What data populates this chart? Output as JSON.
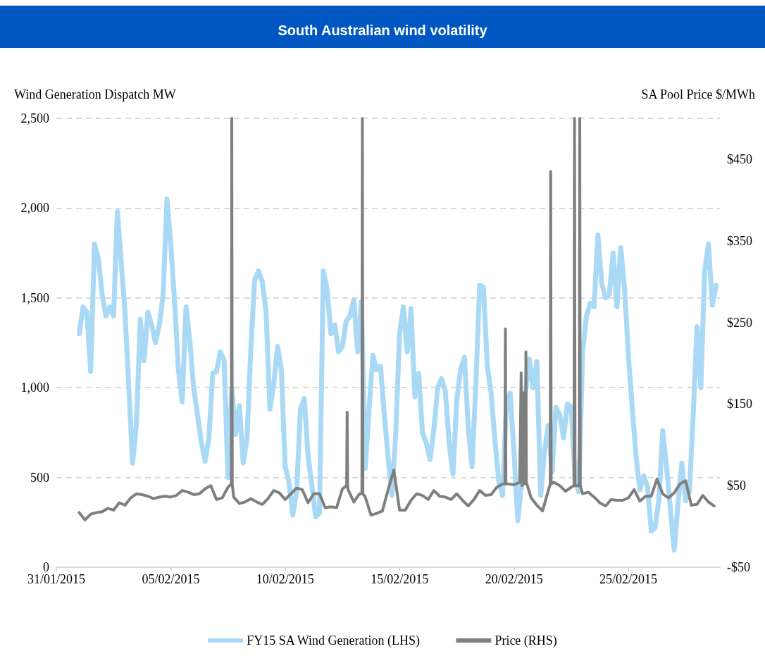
{
  "chart_data": {
    "type": "line",
    "title": "South Australian wind volatility",
    "ylabel": "Wind Generation Dispatch MW",
    "y2label": "SA Pool Price $/MWh",
    "xlim": [
      "2015-01-31",
      "2015-03-01"
    ],
    "xticks": [
      {
        "value": "2015-01-31",
        "label": "31/01/2015"
      },
      {
        "value": "2015-02-05",
        "label": "05/02/2015"
      },
      {
        "value": "2015-02-10",
        "label": "10/02/2015"
      },
      {
        "value": "2015-02-15",
        "label": "15/02/2015"
      },
      {
        "value": "2015-02-20",
        "label": "20/02/2015"
      },
      {
        "value": "2015-02-25",
        "label": "25/02/2015"
      }
    ],
    "ylim": [
      0,
      2500
    ],
    "yticks": [
      0,
      500,
      {
        "value": 1000,
        "label": "1,000"
      },
      {
        "value": 1500,
        "label": "1,500"
      },
      {
        "value": 2000,
        "label": "2,000"
      },
      {
        "value": 2500,
        "label": "2,500"
      }
    ],
    "y2lim": [
      -50,
      500
    ],
    "y2ticks": [
      {
        "value": -50,
        "label": "-$50"
      },
      {
        "value": 50,
        "label": "$50"
      },
      {
        "value": 150,
        "label": "$150"
      },
      {
        "value": 250,
        "label": "$250"
      },
      {
        "value": 350,
        "label": "$350"
      },
      {
        "value": 450,
        "label": "$450"
      }
    ],
    "grid": "y",
    "legend": "bottom",
    "marker": "none",
    "line_style": "solid",
    "series": [
      {
        "name": "FY15 SA Wind Generation (LHS)",
        "color": "#a9d9f5",
        "x": [
          "2015-02-01T00:00",
          "2015-02-01T04:00",
          "2015-02-01T08:00",
          "2015-02-01T12:00",
          "2015-02-01T16:00",
          "2015-02-01T20:00",
          "2015-02-02T00:00",
          "2015-02-02T04:00",
          "2015-02-02T08:00",
          "2015-02-02T12:00",
          "2015-02-02T16:00",
          "2015-02-02T20:00",
          "2015-02-03T00:00",
          "2015-02-03T04:00",
          "2015-02-03T08:00",
          "2015-02-03T12:00",
          "2015-02-03T16:00",
          "2015-02-03T20:00",
          "2015-02-04T00:00",
          "2015-02-04T04:00",
          "2015-02-04T08:00",
          "2015-02-04T12:00",
          "2015-02-04T16:00",
          "2015-02-04T20:00",
          "2015-02-05T00:00",
          "2015-02-05T04:00",
          "2015-02-05T08:00",
          "2015-02-05T12:00",
          "2015-02-05T16:00",
          "2015-02-05T20:00",
          "2015-02-06T00:00",
          "2015-02-06T04:00",
          "2015-02-06T08:00",
          "2015-02-06T12:00",
          "2015-02-06T16:00",
          "2015-02-06T20:00",
          "2015-02-07T00:00",
          "2015-02-07T04:00",
          "2015-02-07T08:00",
          "2015-02-07T12:00",
          "2015-02-07T16:00",
          "2015-02-07T20:00",
          "2015-02-08T00:00",
          "2015-02-08T04:00",
          "2015-02-08T08:00",
          "2015-02-08T12:00",
          "2015-02-08T16:00",
          "2015-02-08T20:00",
          "2015-02-09T00:00",
          "2015-02-09T04:00",
          "2015-02-09T08:00",
          "2015-02-09T12:00",
          "2015-02-09T16:00",
          "2015-02-09T20:00",
          "2015-02-10T00:00",
          "2015-02-10T04:00",
          "2015-02-10T08:00",
          "2015-02-10T12:00",
          "2015-02-10T16:00",
          "2015-02-10T20:00",
          "2015-02-11T00:00",
          "2015-02-11T04:00",
          "2015-02-11T08:00",
          "2015-02-11T12:00",
          "2015-02-11T16:00",
          "2015-02-11T20:00",
          "2015-02-12T00:00",
          "2015-02-12T04:00",
          "2015-02-12T08:00",
          "2015-02-12T12:00",
          "2015-02-12T16:00",
          "2015-02-12T20:00",
          "2015-02-13T00:00",
          "2015-02-13T04:00",
          "2015-02-13T08:00",
          "2015-02-13T12:00",
          "2015-02-13T16:00",
          "2015-02-13T20:00",
          "2015-02-14T00:00",
          "2015-02-14T04:00",
          "2015-02-14T08:00",
          "2015-02-14T12:00",
          "2015-02-14T16:00",
          "2015-02-14T20:00",
          "2015-02-15T00:00",
          "2015-02-15T04:00",
          "2015-02-15T08:00",
          "2015-02-15T12:00",
          "2015-02-15T16:00",
          "2015-02-15T20:00",
          "2015-02-16T00:00",
          "2015-02-16T04:00",
          "2015-02-16T08:00",
          "2015-02-16T12:00",
          "2015-02-16T16:00",
          "2015-02-16T20:00",
          "2015-02-17T00:00",
          "2015-02-17T04:00",
          "2015-02-17T08:00",
          "2015-02-17T12:00",
          "2015-02-17T16:00",
          "2015-02-17T20:00",
          "2015-02-18T00:00",
          "2015-02-18T04:00",
          "2015-02-18T08:00",
          "2015-02-18T12:00",
          "2015-02-18T16:00",
          "2015-02-18T20:00",
          "2015-02-19T00:00",
          "2015-02-19T04:00",
          "2015-02-19T08:00",
          "2015-02-19T12:00",
          "2015-02-19T16:00",
          "2015-02-19T20:00",
          "2015-02-20T00:00",
          "2015-02-20T04:00",
          "2015-02-20T08:00",
          "2015-02-20T12:00",
          "2015-02-20T16:00",
          "2015-02-20T20:00",
          "2015-02-21T00:00",
          "2015-02-21T04:00",
          "2015-02-21T08:00",
          "2015-02-21T12:00",
          "2015-02-21T16:00",
          "2015-02-21T20:00",
          "2015-02-22T00:00",
          "2015-02-22T04:00",
          "2015-02-22T08:00",
          "2015-02-22T12:00",
          "2015-02-22T16:00",
          "2015-02-22T20:00",
          "2015-02-23T00:00",
          "2015-02-23T04:00",
          "2015-02-23T08:00",
          "2015-02-23T12:00",
          "2015-02-23T16:00",
          "2015-02-23T20:00",
          "2015-02-24T00:00",
          "2015-02-24T04:00",
          "2015-02-24T08:00",
          "2015-02-24T12:00",
          "2015-02-24T16:00",
          "2015-02-24T20:00",
          "2015-02-25T00:00",
          "2015-02-25T04:00",
          "2015-02-25T08:00",
          "2015-02-25T12:00",
          "2015-02-25T16:00",
          "2015-02-25T20:00",
          "2015-02-26T00:00",
          "2015-02-26T04:00",
          "2015-02-26T08:00",
          "2015-02-26T12:00",
          "2015-02-26T16:00",
          "2015-02-26T20:00",
          "2015-02-27T00:00",
          "2015-02-27T04:00",
          "2015-02-27T08:00",
          "2015-02-27T12:00",
          "2015-02-27T16:00",
          "2015-02-27T20:00",
          "2015-02-28T00:00",
          "2015-02-28T04:00",
          "2015-02-28T08:00",
          "2015-02-28T12:00",
          "2015-02-28T16:00",
          "2015-02-28T20:00"
        ],
        "values": [
          1300,
          1450,
          1420,
          1090,
          1800,
          1720,
          1520,
          1400,
          1450,
          1400,
          1980,
          1700,
          1420,
          1000,
          580,
          800,
          1380,
          1150,
          1420,
          1350,
          1250,
          1350,
          1520,
          2050,
          1800,
          1480,
          1100,
          920,
          1450,
          1260,
          1000,
          850,
          700,
          590,
          720,
          1080,
          1090,
          1200,
          1150,
          500,
          1000,
          740,
          900,
          580,
          720,
          1220,
          1600,
          1650,
          1590,
          1420,
          880,
          1020,
          1230,
          1100,
          560,
          475,
          290,
          420,
          880,
          940,
          620,
          455,
          280,
          300,
          1650,
          1550,
          1300,
          1350,
          1200,
          1230,
          1370,
          1400,
          1490,
          1200,
          1480,
          550,
          880,
          1180,
          1100,
          1120,
          850,
          610,
          400,
          750,
          1300,
          1450,
          1200,
          1440,
          950,
          1080,
          750,
          690,
          600,
          770,
          1000,
          1050,
          980,
          690,
          520,
          930,
          1100,
          1170,
          780,
          560,
          1020,
          1570,
          1560,
          1120,
          970,
          710,
          480,
          400,
          900,
          970,
          640,
          260,
          470,
          970,
          1160,
          1000,
          1145,
          400,
          650,
          790,
          530,
          890,
          850,
          720,
          910,
          890,
          500,
          420,
          1200,
          1400,
          1470,
          1450,
          1850,
          1580,
          1500,
          1520,
          1750,
          1450,
          1780,
          1550,
          1180,
          890,
          620,
          430,
          510,
          450,
          200,
          220,
          380,
          760,
          560,
          330,
          95,
          350,
          580,
          370,
          420,
          850,
          1340,
          1000,
          1650,
          1800,
          1460,
          1570
        ]
      },
      {
        "name": "Price (RHS)",
        "color": "#7f7f7f",
        "axis": "y2",
        "x": [
          "2015-02-01T00:00",
          "2015-02-01T06:00",
          "2015-02-01T12:00",
          "2015-02-01T18:00",
          "2015-02-02T00:00",
          "2015-02-02T06:00",
          "2015-02-02T12:00",
          "2015-02-02T18:00",
          "2015-02-03T00:00",
          "2015-02-03T06:00",
          "2015-02-03T12:00",
          "2015-02-03T18:00",
          "2015-02-04T00:00",
          "2015-02-04T06:00",
          "2015-02-04T12:00",
          "2015-02-04T18:00",
          "2015-02-05T00:00",
          "2015-02-05T06:00",
          "2015-02-05T12:00",
          "2015-02-05T18:00",
          "2015-02-06T00:00",
          "2015-02-06T06:00",
          "2015-02-06T12:00",
          "2015-02-06T18:00",
          "2015-02-07T00:00",
          "2015-02-07T06:00",
          "2015-02-07T12:00",
          "2015-02-07T15:30",
          "2015-02-07T16:00",
          "2015-02-07T16:30",
          "2015-02-07T18:00",
          "2015-02-08T00:00",
          "2015-02-08T06:00",
          "2015-02-08T12:00",
          "2015-02-08T18:00",
          "2015-02-09T00:00",
          "2015-02-09T06:00",
          "2015-02-09T12:00",
          "2015-02-09T18:00",
          "2015-02-10T00:00",
          "2015-02-10T06:00",
          "2015-02-10T12:00",
          "2015-02-10T18:00",
          "2015-02-11T00:00",
          "2015-02-11T06:00",
          "2015-02-11T12:00",
          "2015-02-11T18:00",
          "2015-02-12T00:00",
          "2015-02-12T06:00",
          "2015-02-12T12:00",
          "2015-02-12T16:30",
          "2015-02-12T17:00",
          "2015-02-12T17:30",
          "2015-02-12T18:00",
          "2015-02-13T00:00",
          "2015-02-13T06:00",
          "2015-02-13T08:30",
          "2015-02-13T09:00",
          "2015-02-13T09:30",
          "2015-02-13T12:00",
          "2015-02-13T18:00",
          "2015-02-14T00:00",
          "2015-02-14T06:00",
          "2015-02-14T12:00",
          "2015-02-14T18:00",
          "2015-02-15T00:00",
          "2015-02-15T06:00",
          "2015-02-15T12:00",
          "2015-02-15T18:00",
          "2015-02-16T00:00",
          "2015-02-16T06:00",
          "2015-02-16T12:00",
          "2015-02-16T18:00",
          "2015-02-17T00:00",
          "2015-02-17T06:00",
          "2015-02-17T12:00",
          "2015-02-17T18:00",
          "2015-02-18T00:00",
          "2015-02-18T06:00",
          "2015-02-18T12:00",
          "2015-02-18T18:00",
          "2015-02-19T00:00",
          "2015-02-19T06:00",
          "2015-02-19T12:00",
          "2015-02-19T14:30",
          "2015-02-19T15:00",
          "2015-02-19T15:30",
          "2015-02-19T18:00",
          "2015-02-20T00:00",
          "2015-02-20T06:00",
          "2015-02-20T07:30",
          "2015-02-20T08:30",
          "2015-02-20T09:30",
          "2015-02-20T10:30",
          "2015-02-20T12:00",
          "2015-02-20T12:30",
          "2015-02-20T13:00",
          "2015-02-20T18:00",
          "2015-02-21T00:00",
          "2015-02-21T06:00",
          "2015-02-21T12:00",
          "2015-02-21T14:00",
          "2015-02-21T14:30",
          "2015-02-21T15:00",
          "2015-02-21T18:00",
          "2015-02-22T00:00",
          "2015-02-22T06:00",
          "2015-02-22T12:00",
          "2015-02-22T15:00",
          "2015-02-22T15:30",
          "2015-02-22T16:00",
          "2015-02-22T18:00",
          "2015-02-22T20:30",
          "2015-02-22T21:00",
          "2015-02-22T21:30",
          "2015-02-23T00:00",
          "2015-02-23T06:00",
          "2015-02-23T12:00",
          "2015-02-23T18:00",
          "2015-02-24T00:00",
          "2015-02-24T06:00",
          "2015-02-24T12:00",
          "2015-02-24T18:00",
          "2015-02-25T00:00",
          "2015-02-25T06:00",
          "2015-02-25T12:00",
          "2015-02-25T18:00",
          "2015-02-26T00:00",
          "2015-02-26T06:00",
          "2015-02-26T12:00",
          "2015-02-26T18:00",
          "2015-02-27T00:00",
          "2015-02-27T06:00",
          "2015-02-27T12:00",
          "2015-02-27T18:00",
          "2015-02-28T00:00",
          "2015-02-28T06:00",
          "2015-02-28T12:00",
          "2015-02-28T18:00"
        ],
        "values": [
          17,
          8,
          15,
          17,
          18,
          22,
          20,
          29,
          26,
          35,
          40,
          39,
          37,
          34,
          36,
          37,
          36,
          38,
          44,
          42,
          39,
          40,
          46,
          50,
          33,
          35,
          48,
          52,
          500,
          52,
          36,
          28,
          30,
          34,
          30,
          27,
          34,
          44,
          41,
          33,
          40,
          47,
          45,
          29,
          40,
          40,
          23,
          24,
          23,
          46,
          50,
          140,
          50,
          45,
          30,
          40,
          40,
          500,
          40,
          36,
          14,
          16,
          19,
          45,
          69,
          20,
          20,
          32,
          40,
          38,
          33,
          44,
          37,
          36,
          33,
          40,
          32,
          25,
          33,
          44,
          38,
          39,
          48,
          52,
          52,
          242,
          52,
          52,
          51,
          54,
          188,
          50,
          164,
          52,
          54,
          214,
          54,
          35,
          26,
          19,
          44,
          52,
          435,
          52,
          54,
          50,
          43,
          48,
          50,
          500,
          50,
          50,
          50,
          500,
          50,
          40,
          42,
          36,
          29,
          25,
          33,
          32,
          32,
          35,
          45,
          31,
          37,
          37,
          58,
          40,
          35,
          41,
          52,
          56,
          26,
          27,
          38,
          30,
          25
        ]
      }
    ]
  }
}
